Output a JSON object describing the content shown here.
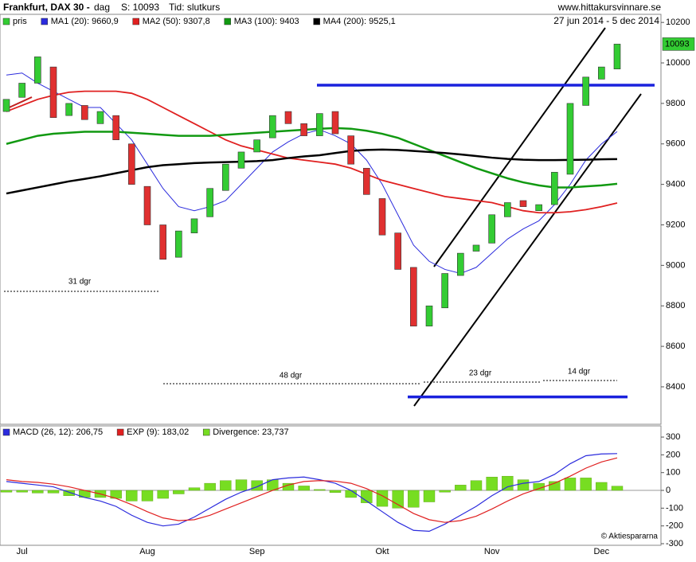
{
  "header": {
    "instrument": "Frankfurt, DAX 30 -",
    "period": "dag",
    "last": "S: 10093",
    "time": "Tid: slutkurs",
    "site": "www.hittakursvinnare.se",
    "range": "27 jun 2014 - 5 dec 2014"
  },
  "chart_data": [
    {
      "type": "candlestick",
      "categories": [
        null,
        "Jul",
        null,
        null,
        null,
        null,
        null,
        null,
        null,
        "Aug",
        null,
        null,
        null,
        null,
        null,
        null,
        "Sep",
        null,
        null,
        null,
        null,
        null,
        null,
        null,
        "Okt",
        null,
        null,
        null,
        null,
        null,
        null,
        "Nov",
        null,
        null,
        null,
        null,
        null,
        null,
        "Dec",
        null
      ],
      "candle_name": "pris",
      "up_color": "#33cc33",
      "down_color": "#e03030",
      "open": [
        9760,
        9830,
        9900,
        9980,
        9740,
        9790,
        9700,
        9740,
        9600,
        9390,
        9200,
        9040,
        9160,
        9240,
        9370,
        9480,
        9560,
        9630,
        9760,
        9700,
        9640,
        9760,
        9640,
        9480,
        9330,
        9160,
        8990,
        8700,
        8790,
        8950,
        9070,
        9110,
        9240,
        9320,
        9270,
        9300,
        9450,
        9790,
        9920,
        9970
      ],
      "close": [
        9820,
        9900,
        10030,
        9730,
        9800,
        9720,
        9760,
        9620,
        9400,
        9200,
        9030,
        9170,
        9230,
        9380,
        9500,
        9560,
        9620,
        9740,
        9700,
        9640,
        9750,
        9650,
        9500,
        9350,
        9150,
        8980,
        8700,
        8800,
        8960,
        9060,
        9100,
        9250,
        9310,
        9290,
        9300,
        9460,
        9800,
        9930,
        9980,
        10093
      ],
      "series": [
        {
          "name": "MA1 (20): 9660,9",
          "color": "#2b2bdd",
          "values": [
            9940,
            9950,
            9900,
            9860,
            9820,
            9780,
            9780,
            9700,
            9620,
            9500,
            9380,
            9290,
            9270,
            9290,
            9320,
            9400,
            9480,
            9560,
            9610,
            9650,
            9670,
            9640,
            9600,
            9520,
            9400,
            9250,
            9100,
            9020,
            8980,
            8960,
            8990,
            9060,
            9130,
            9180,
            9220,
            9300,
            9400,
            9520,
            9600,
            9661
          ]
        },
        {
          "name": "MA2 (50): 9307,8",
          "color": "#e02020",
          "values": [
            9760,
            9790,
            9820,
            9840,
            9855,
            9860,
            9860,
            9860,
            9850,
            9820,
            9780,
            9740,
            9700,
            9660,
            9620,
            9590,
            9570,
            9550,
            9530,
            9520,
            9510,
            9500,
            9480,
            9450,
            9420,
            9400,
            9380,
            9360,
            9340,
            9330,
            9320,
            9310,
            9290,
            9270,
            9260,
            9260,
            9265,
            9275,
            9290,
            9308
          ]
        },
        {
          "name": "MA3 (100): 9403",
          "color": "#119911",
          "values": [
            9600,
            9620,
            9640,
            9650,
            9655,
            9660,
            9660,
            9660,
            9655,
            9650,
            9645,
            9640,
            9640,
            9640,
            9645,
            9650,
            9655,
            9660,
            9665,
            9670,
            9675,
            9678,
            9675,
            9665,
            9650,
            9630,
            9600,
            9570,
            9540,
            9510,
            9480,
            9455,
            9430,
            9410,
            9395,
            9385,
            9385,
            9390,
            9395,
            9403
          ]
        },
        {
          "name": "MA4 (200): 9525,1",
          "color": "#000000",
          "values": [
            9355,
            9370,
            9385,
            9400,
            9415,
            9427,
            9440,
            9455,
            9470,
            9485,
            9495,
            9500,
            9505,
            9508,
            9510,
            9512,
            9515,
            9520,
            9530,
            9538,
            9544,
            9555,
            9565,
            9570,
            9572,
            9570,
            9565,
            9560,
            9555,
            9548,
            9540,
            9532,
            9526,
            9522,
            9520,
            9520,
            9521,
            9522,
            9524,
            9525
          ]
        }
      ],
      "ylim": [
        8215,
        10240
      ],
      "yticks": [
        8400,
        8600,
        8800,
        9000,
        9200,
        9400,
        9600,
        9800,
        10000,
        10200
      ],
      "last_price": 10093,
      "levels": [
        9890,
        8350
      ],
      "annotations": [
        "31 dgr",
        "48 dgr",
        "23 dgr",
        "14 dgr"
      ]
    },
    {
      "type": "macd",
      "series": [
        {
          "name": "MACD (26, 12): 206,75",
          "color": "#2b2bdd",
          "values": [
            50,
            40,
            30,
            20,
            -10,
            -40,
            -60,
            -90,
            -140,
            -180,
            -200,
            -190,
            -150,
            -100,
            -50,
            -10,
            20,
            60,
            70,
            75,
            60,
            40,
            0,
            -60,
            -120,
            -180,
            -225,
            -230,
            -190,
            -140,
            -90,
            -30,
            20,
            40,
            50,
            90,
            150,
            195,
            205,
            207
          ]
        },
        {
          "name": "EXP (9): 183,02",
          "color": "#e02020",
          "values": [
            60,
            50,
            45,
            35,
            20,
            0,
            -20,
            -45,
            -80,
            -120,
            -155,
            -170,
            -165,
            -140,
            -105,
            -70,
            -35,
            0,
            30,
            50,
            55,
            52,
            40,
            10,
            -30,
            -80,
            -130,
            -165,
            -180,
            -170,
            -145,
            -105,
            -60,
            -20,
            10,
            40,
            80,
            125,
            160,
            183
          ]
        },
        {
          "name": "Divergence: 23,737",
          "color": "#77dd22",
          "bars": true,
          "values": [
            -10,
            -10,
            -15,
            -15,
            -30,
            -40,
            -40,
            -45,
            -60,
            -60,
            -45,
            -20,
            15,
            40,
            55,
            60,
            55,
            60,
            40,
            25,
            5,
            -12,
            -40,
            -70,
            -90,
            -100,
            -95,
            -65,
            -10,
            30,
            55,
            75,
            80,
            60,
            40,
            50,
            70,
            70,
            45,
            24
          ]
        }
      ],
      "ylim": [
        -309,
        363
      ],
      "yticks": [
        -300,
        -200,
        -100,
        0,
        100,
        200,
        300
      ],
      "credit": "© Aktiespararna"
    }
  ]
}
